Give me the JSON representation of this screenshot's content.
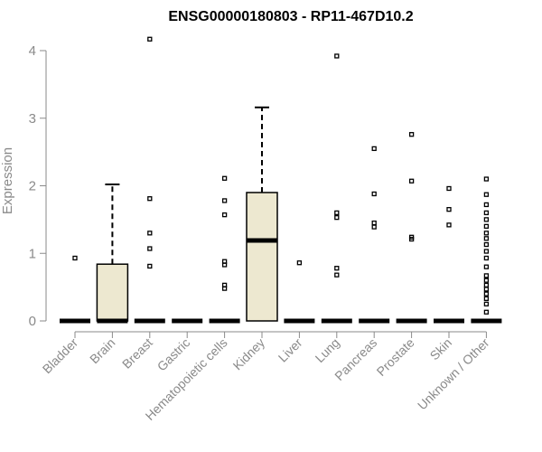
{
  "chart_data": {
    "type": "boxplot",
    "title": "ENSG00000180803 - RP11-467D10.2",
    "ylabel": "Expression",
    "xlabel": "",
    "ylim": [
      0,
      4.2
    ],
    "yticks": [
      0,
      1,
      2,
      3,
      4
    ],
    "box_fill": "#ede8d0",
    "categories": [
      "Bladder",
      "Brain",
      "Breast",
      "Gastric",
      "Hematopoietic cells",
      "Kidney",
      "Liver",
      "Lung",
      "Pancreas",
      "Prostate",
      "Skin",
      "Unknown / Other"
    ],
    "boxes": [
      {
        "q1": 0,
        "median": 0,
        "q3": 0,
        "whisker_low": 0,
        "whisker_high": 0,
        "outliers": [
          0.93
        ]
      },
      {
        "q1": 0,
        "median": 0,
        "q3": 0.84,
        "whisker_low": 0,
        "whisker_high": 2.02,
        "outliers": []
      },
      {
        "q1": 0,
        "median": 0,
        "q3": 0,
        "whisker_low": 0,
        "whisker_high": 0,
        "outliers": [
          4.17,
          1.81,
          1.3,
          1.07,
          0.81
        ]
      },
      {
        "q1": 0,
        "median": 0,
        "q3": 0,
        "whisker_low": 0,
        "whisker_high": 0,
        "outliers": []
      },
      {
        "q1": 0,
        "median": 0,
        "q3": 0,
        "whisker_low": 0,
        "whisker_high": 0,
        "outliers": [
          2.11,
          1.78,
          1.57,
          0.88,
          0.83,
          0.53,
          0.48
        ]
      },
      {
        "q1": 0,
        "median": 1.19,
        "q3": 1.9,
        "whisker_low": 0,
        "whisker_high": 3.16,
        "outliers": []
      },
      {
        "q1": 0,
        "median": 0,
        "q3": 0,
        "whisker_low": 0,
        "whisker_high": 0,
        "outliers": [
          0.86
        ]
      },
      {
        "q1": 0,
        "median": 0,
        "q3": 0,
        "whisker_low": 0,
        "whisker_high": 0,
        "outliers": [
          3.92,
          1.6,
          1.53,
          0.78,
          0.68
        ]
      },
      {
        "q1": 0,
        "median": 0,
        "q3": 0,
        "whisker_low": 0,
        "whisker_high": 0,
        "outliers": [
          2.55,
          1.88,
          1.45,
          1.39
        ]
      },
      {
        "q1": 0,
        "median": 0,
        "q3": 0,
        "whisker_low": 0,
        "whisker_high": 0,
        "outliers": [
          2.76,
          2.07,
          1.24,
          1.21
        ]
      },
      {
        "q1": 0,
        "median": 0,
        "q3": 0,
        "whisker_low": 0,
        "whisker_high": 0,
        "outliers": [
          1.96,
          1.65,
          1.42
        ]
      },
      {
        "q1": 0,
        "median": 0,
        "q3": 0,
        "whisker_low": 0,
        "whisker_high": 0,
        "outliers": [
          2.1,
          1.87,
          1.72,
          1.6,
          1.5,
          1.4,
          1.3,
          1.22,
          1.13,
          1.03,
          0.93,
          0.8,
          0.67,
          0.6,
          0.53,
          0.47,
          0.4,
          0.33,
          0.25,
          0.13
        ]
      }
    ]
  }
}
